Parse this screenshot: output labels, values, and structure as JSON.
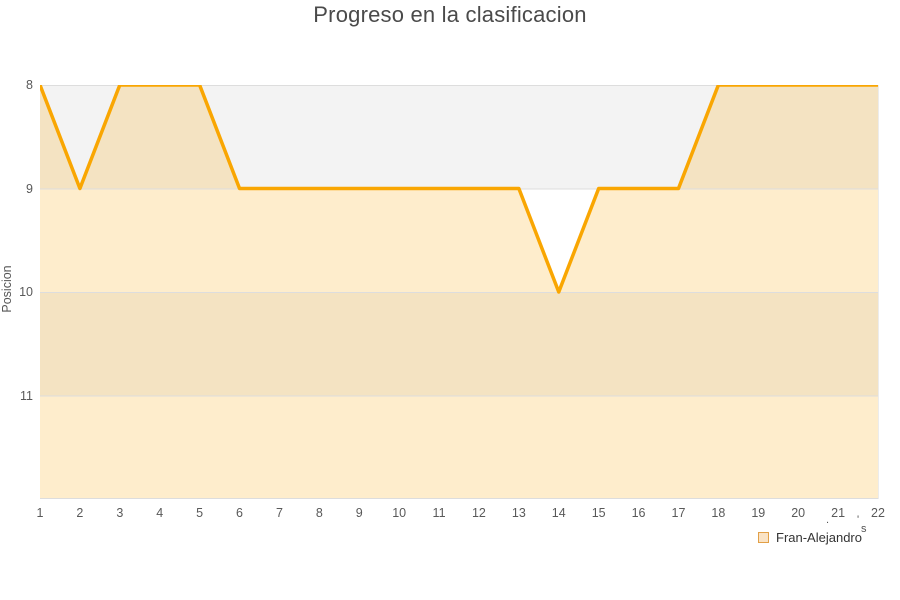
{
  "chart_data": {
    "type": "area",
    "title": "Progreso en la clasificacion",
    "xlabel": "",
    "ylabel": "Posicion",
    "x": [
      1,
      2,
      3,
      4,
      5,
      6,
      7,
      8,
      9,
      10,
      11,
      12,
      13,
      14,
      15,
      16,
      17,
      18,
      19,
      20,
      21,
      22
    ],
    "series": [
      {
        "name": "Fran-Alejandro",
        "values": [
          8,
          9,
          8,
          8,
          8,
          9,
          9,
          9,
          9,
          9,
          9,
          9,
          9,
          10,
          9,
          9,
          9,
          8,
          8,
          8,
          8,
          8
        ]
      }
    ],
    "yticks": [
      8,
      9,
      10,
      11
    ],
    "ylim": [
      8,
      12
    ],
    "y_inverted": true,
    "grid": true,
    "legend_position": "bottom-right",
    "colors": {
      "line": "#f9a602",
      "fill": "#f9a602",
      "fill_opacity": 0.2,
      "band": "#f3f3f3",
      "band_alt": "#ffffff",
      "gridline": "#dddddd",
      "plot_bottom_border": "#dddddd",
      "tick_text": "#595959",
      "title_text": "#4a4a4a"
    }
  },
  "legend": {
    "label": "Fran-Alejandro"
  },
  "clipped_fragments": {
    "dot": ".",
    "tick": "'",
    "s": "s"
  }
}
